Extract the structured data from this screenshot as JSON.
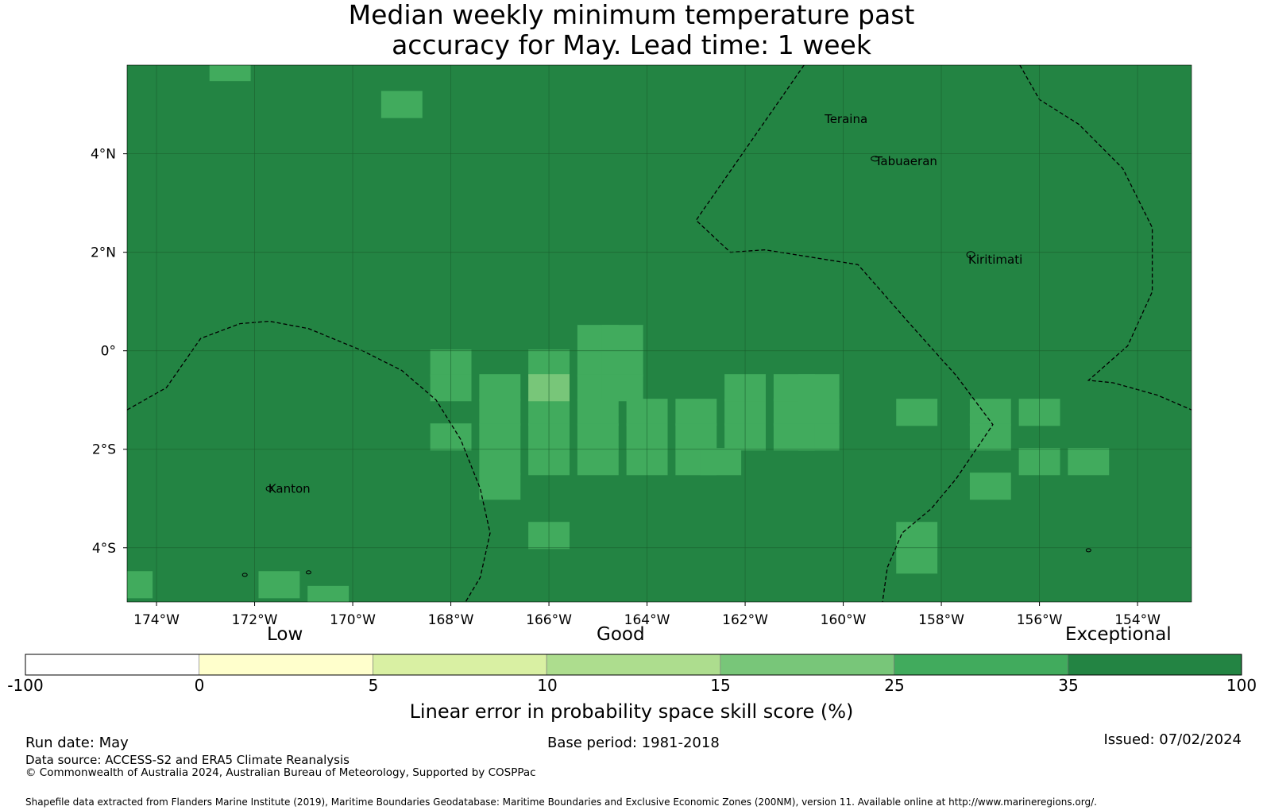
{
  "title": {
    "line1": "Median weekly minimum temperature past",
    "line2": "accuracy for May. Lead time: 1 week"
  },
  "map": {
    "lon_range": [
      -174.6,
      -152.9
    ],
    "lat_range": [
      -5.1,
      5.8
    ],
    "lon_ticks": [
      {
        "value": -174,
        "label": "174°W"
      },
      {
        "value": -172,
        "label": "172°W"
      },
      {
        "value": -170,
        "label": "170°W"
      },
      {
        "value": -168,
        "label": "168°W"
      },
      {
        "value": -166,
        "label": "166°W"
      },
      {
        "value": -164,
        "label": "164°W"
      },
      {
        "value": -162,
        "label": "162°W"
      },
      {
        "value": -160,
        "label": "160°W"
      },
      {
        "value": -158,
        "label": "158°W"
      },
      {
        "value": -156,
        "label": "156°W"
      },
      {
        "value": -154,
        "label": "154°W"
      }
    ],
    "lat_ticks": [
      {
        "value": 4,
        "label": "4°N"
      },
      {
        "value": 2,
        "label": "2°N"
      },
      {
        "value": 0,
        "label": "0°"
      },
      {
        "value": -2,
        "label": "2°S"
      },
      {
        "value": -4,
        "label": "4°S"
      }
    ],
    "background_class": "35-100",
    "cells_25_35": [
      {
        "lon": -172.5,
        "lat": 5.75
      },
      {
        "lon": -169,
        "lat": 5.0
      },
      {
        "lon": -168,
        "lat": -0.25
      },
      {
        "lon": -168,
        "lat": -0.75
      },
      {
        "lon": -167,
        "lat": -0.75
      },
      {
        "lon": -166,
        "lat": -0.25
      },
      {
        "lon": -165,
        "lat": -0.25
      },
      {
        "lon": -165,
        "lat": -0.75
      },
      {
        "lon": -165,
        "lat": 0.25
      },
      {
        "lon": -164.5,
        "lat": 0.25
      },
      {
        "lon": -164.5,
        "lat": -0.25
      },
      {
        "lon": -164.5,
        "lat": -0.75
      },
      {
        "lon": -167,
        "lat": -1.25
      },
      {
        "lon": -166,
        "lat": -1.25
      },
      {
        "lon": -165,
        "lat": -1.25
      },
      {
        "lon": -164,
        "lat": -1.25
      },
      {
        "lon": -163,
        "lat": -1.25
      },
      {
        "lon": -162,
        "lat": -1.25
      },
      {
        "lon": -161,
        "lat": -1.25
      },
      {
        "lon": -162,
        "lat": -0.75
      },
      {
        "lon": -161,
        "lat": -0.75
      },
      {
        "lon": -160.5,
        "lat": -0.75
      },
      {
        "lon": -160.5,
        "lat": -1.25
      },
      {
        "lon": -160.5,
        "lat": -1.75
      },
      {
        "lon": -168,
        "lat": -1.75
      },
      {
        "lon": -167,
        "lat": -1.75
      },
      {
        "lon": -166,
        "lat": -1.75
      },
      {
        "lon": -165,
        "lat": -1.75
      },
      {
        "lon": -164,
        "lat": -1.75
      },
      {
        "lon": -163,
        "lat": -1.75
      },
      {
        "lon": -162,
        "lat": -1.75
      },
      {
        "lon": -161,
        "lat": -1.75
      },
      {
        "lon": -167,
        "lat": -2.25
      },
      {
        "lon": -166,
        "lat": -2.25
      },
      {
        "lon": -165,
        "lat": -2.25
      },
      {
        "lon": -164,
        "lat": -2.25
      },
      {
        "lon": -163,
        "lat": -2.25
      },
      {
        "lon": -162.5,
        "lat": -2.25
      },
      {
        "lon": -167,
        "lat": -2.75
      },
      {
        "lon": -166,
        "lat": -3.75
      },
      {
        "lon": -158.5,
        "lat": -1.25
      },
      {
        "lon": -157,
        "lat": -1.25
      },
      {
        "lon": -156,
        "lat": -1.25
      },
      {
        "lon": -157,
        "lat": -1.75
      },
      {
        "lon": -156,
        "lat": -2.25
      },
      {
        "lon": -155,
        "lat": -2.25
      },
      {
        "lon": -157,
        "lat": -2.75
      },
      {
        "lon": -158.5,
        "lat": -3.75
      },
      {
        "lon": -158.5,
        "lat": -4.25
      },
      {
        "lon": -174.5,
        "lat": -4.75
      },
      {
        "lon": -171.5,
        "lat": -4.75
      },
      {
        "lon": -170.5,
        "lat": -5.05
      }
    ],
    "cells_15_25": [
      {
        "lon": -166,
        "lat": -0.75
      }
    ],
    "places": [
      {
        "name": "Teraina",
        "lon": -160.38,
        "lat": 4.7
      },
      {
        "name": "Tabuaeran",
        "lon": -159.35,
        "lat": 3.85
      },
      {
        "name": "Kiritimati",
        "lon": -157.45,
        "lat": 1.85
      },
      {
        "name": "Kanton",
        "lon": -171.72,
        "lat": -2.8
      }
    ]
  },
  "colorbar": {
    "categories": [
      "Low",
      "Good",
      "Exceptional"
    ],
    "boundaries": [
      "-100",
      "0",
      "5",
      "10",
      "15",
      "25",
      "35",
      "100"
    ],
    "colors": [
      "#ffffff",
      "#ffffcc",
      "#d9f0a3",
      "#addd8e",
      "#78c679",
      "#41ab5d",
      "#238443"
    ],
    "label": "Linear error in probability space skill score (%)"
  },
  "footer": {
    "run_date": "Run date: May",
    "base_period": "Base period: 1981-2018",
    "issued": "Issued: 07/02/2024",
    "data_source": "Data source: ACCESS-S2 and ERA5 Climate Reanalysis",
    "copyright": "© Commonwealth of Australia 2024, Australian Bureau of Meteorology, Supported by COSPPac",
    "shapefile": "Shapefile data extracted from Flanders Marine Institute (2019), Maritime Boundaries Geodatabase: Maritime Boundaries and Exclusive Economic Zones (200NM), version 11. Available online at http://www.marineregions.org/."
  }
}
